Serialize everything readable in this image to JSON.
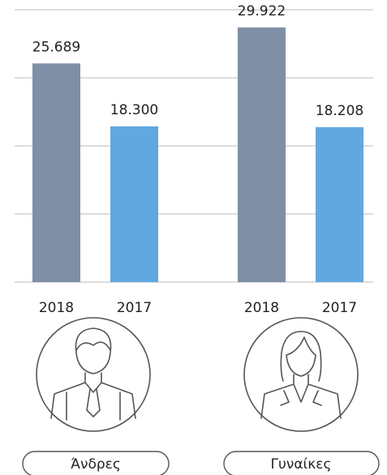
{
  "chart_data": {
    "type": "bar",
    "categories": [
      "Άνδρες",
      "Γυναίκες"
    ],
    "series": [
      {
        "name": "2018",
        "color": "#7f8fa6",
        "values": [
          25689,
          29922
        ],
        "value_labels": [
          "25.689",
          "29.922"
        ]
      },
      {
        "name": "2017",
        "color": "#62a8e0",
        "values": [
          18300,
          18208
        ],
        "value_labels": [
          "18.300",
          "18.208"
        ]
      }
    ],
    "ylim": [
      0,
      32000
    ],
    "grid": true
  }
}
